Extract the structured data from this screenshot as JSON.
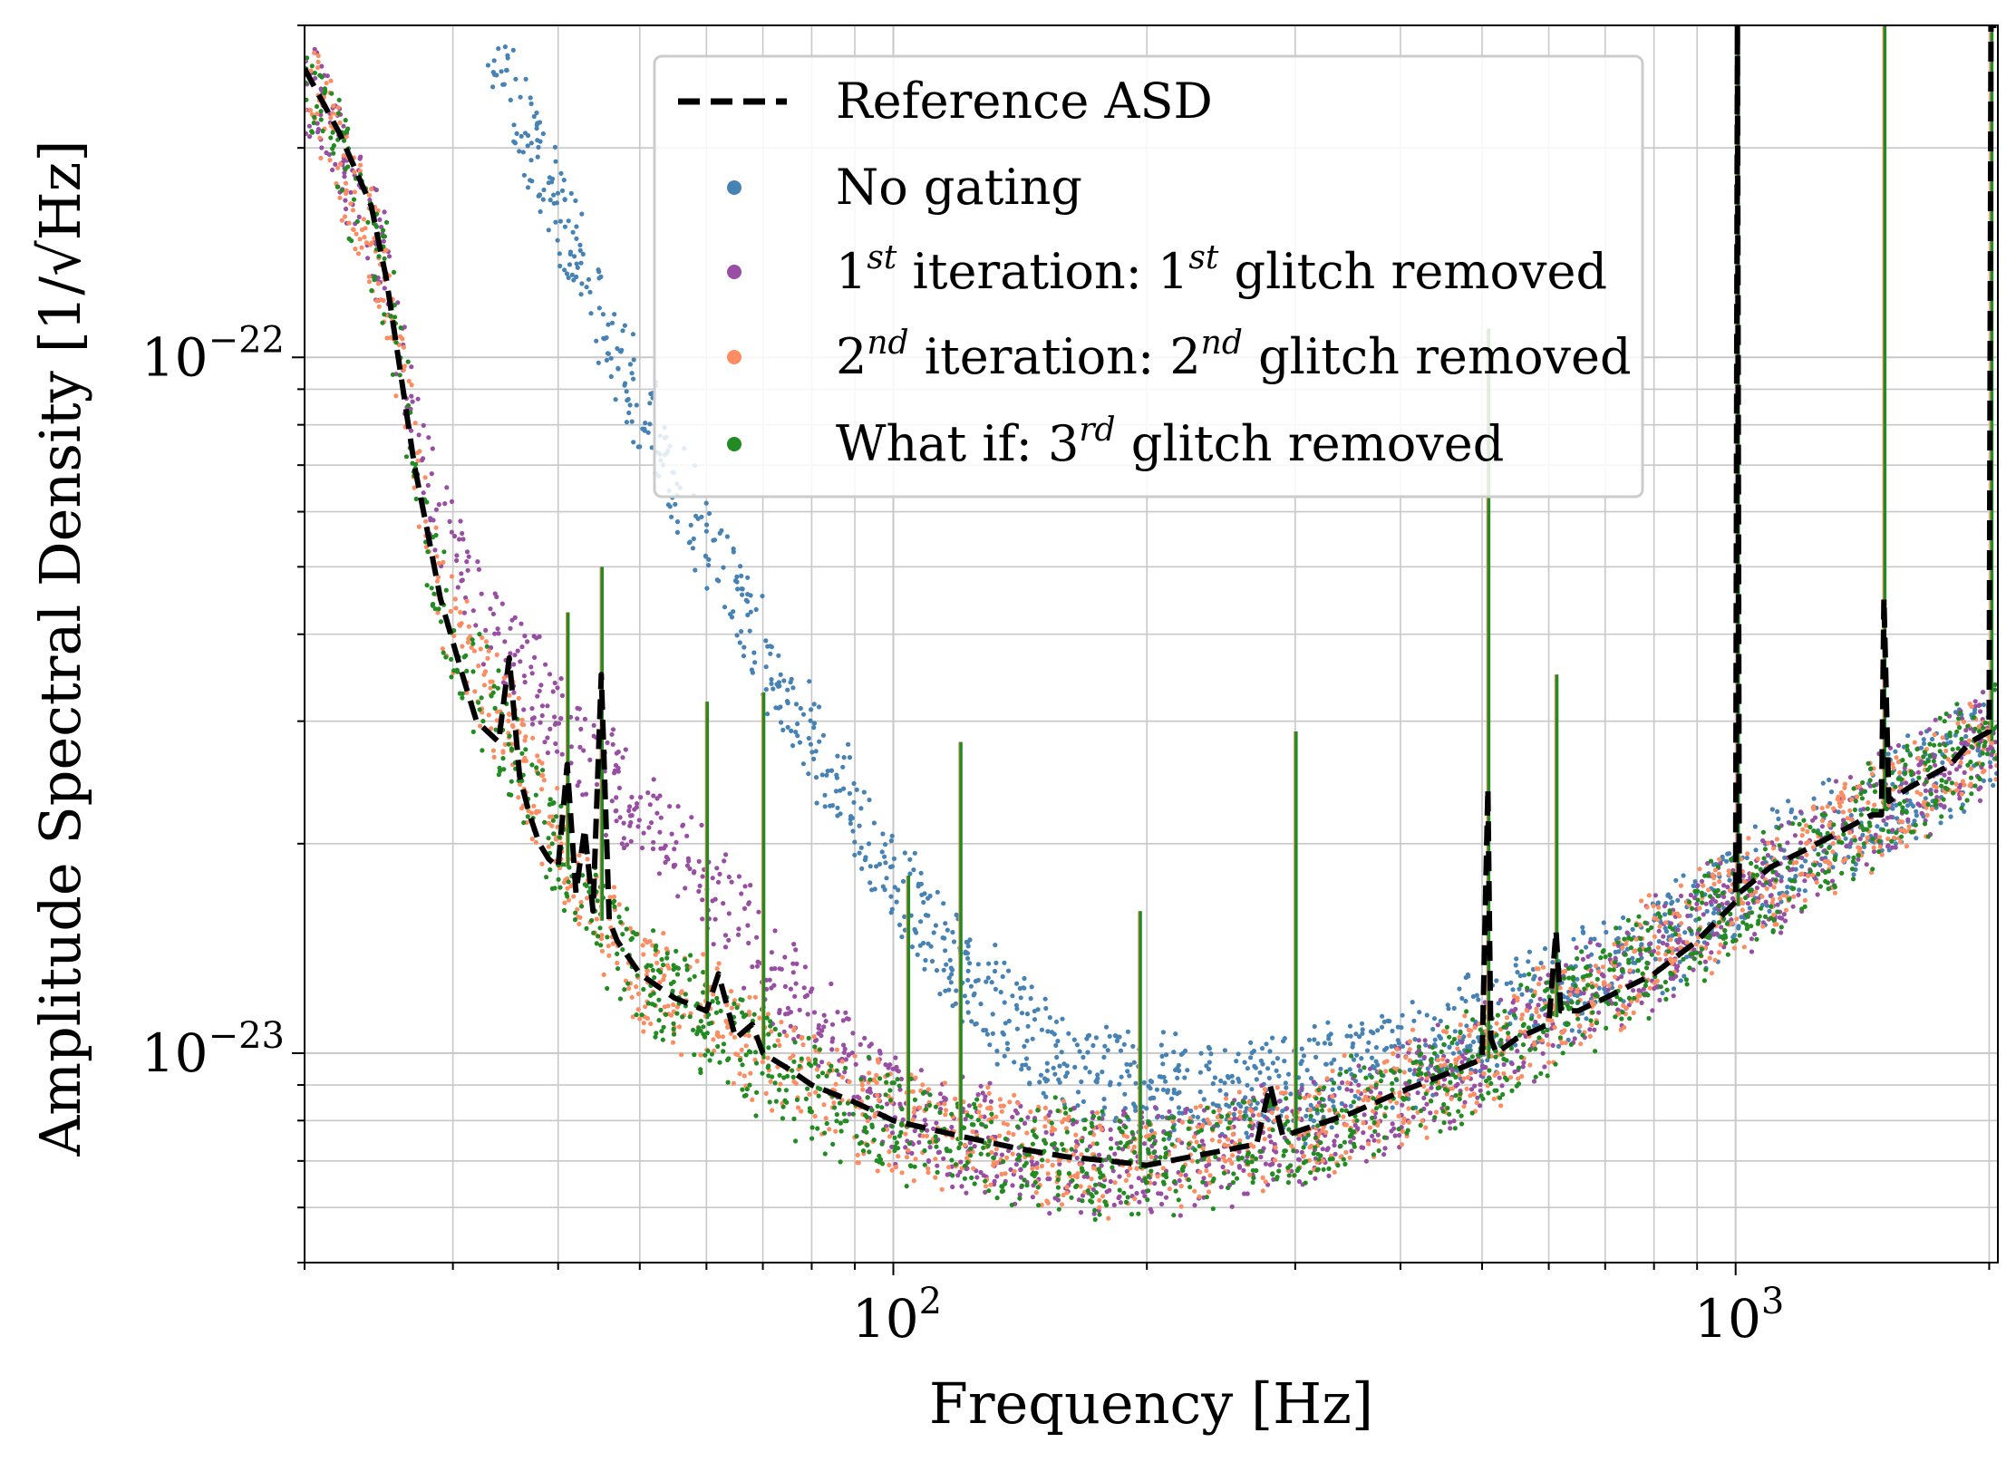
{
  "chart_data": {
    "type": "scatter",
    "title": "",
    "xlabel": "Frequency [Hz]",
    "ylabel": "Amplitude Spectral Density [1/√Hz]",
    "xscale": "log",
    "yscale": "log",
    "xlim": [
      20,
      2048
    ],
    "ylim": [
      5e-24,
      3e-22
    ],
    "grid": true,
    "grid_minor": true,
    "legend_position": "top-center",
    "x_ticks": [
      {
        "value": 100,
        "base": "10",
        "exp": "2"
      },
      {
        "value": 1000,
        "base": "10",
        "exp": "3"
      }
    ],
    "y_ticks": [
      {
        "value": 1e-22,
        "base": "10",
        "exp": "−22"
      },
      {
        "value": 1e-23,
        "base": "10",
        "exp": "−23"
      }
    ],
    "series": [
      {
        "key": "reference",
        "name": "Reference ASD",
        "kind": "dashed-line",
        "color": "#000000",
        "x": [
          20,
          22,
          24,
          25,
          26,
          27,
          28,
          29,
          30,
          31,
          32,
          34,
          35,
          36,
          37,
          38,
          39,
          40,
          41,
          42,
          43,
          44,
          45,
          46,
          47,
          50,
          55,
          60,
          62,
          65,
          68,
          70,
          75,
          80,
          90,
          100,
          120,
          140,
          160,
          180,
          200,
          240,
          270,
          280,
          290,
          300,
          350,
          400,
          450,
          500,
          508,
          512,
          520,
          550,
          600,
          612,
          620,
          650,
          700,
          800,
          900,
          1000,
          1005,
          1010,
          1100,
          1200,
          1300,
          1450,
          1490,
          1500,
          1520,
          1600,
          1800,
          1900,
          2000,
          2010,
          2040
        ],
        "y": [
          2.6e-22,
          2.1e-22,
          1.65e-22,
          1.3e-22,
          9.5e-23,
          7e-23,
          5.6e-23,
          4.5e-23,
          3.9e-23,
          3.4e-23,
          3e-23,
          2.8e-23,
          3.7e-23,
          2.5e-23,
          2.2e-23,
          2e-23,
          1.9e-23,
          1.85e-23,
          2.6e-23,
          1.7e-23,
          2.1e-23,
          1.6e-23,
          3.5e-23,
          1.55e-23,
          1.45e-23,
          1.3e-23,
          1.2e-23,
          1.15e-23,
          1.3e-23,
          1.05e-23,
          1.1e-23,
          1e-23,
          9.5e-24,
          9e-24,
          8.5e-24,
          8e-24,
          7.6e-24,
          7.3e-24,
          7.1e-24,
          7e-24,
          6.9e-24,
          7.2e-24,
          7.4e-24,
          9e-24,
          7.6e-24,
          7.7e-24,
          8.2e-24,
          8.8e-24,
          9.3e-24,
          9.8e-24,
          2.4e-23,
          1.05e-23,
          1e-23,
          1.05e-23,
          1.1e-23,
          1.5e-23,
          1.15e-23,
          1.15e-23,
          1.2e-23,
          1.3e-23,
          1.45e-23,
          1.65e-23,
          3e-22,
          1.7e-23,
          1.85e-23,
          1.95e-23,
          2.05e-23,
          2.2e-23,
          2.2e-23,
          4.5e-23,
          2.3e-23,
          2.4e-23,
          2.6e-23,
          2.8e-23,
          2.9e-23,
          3e-22,
          3e-22
        ]
      },
      {
        "key": "no_gating",
        "name": "No gating",
        "kind": "scatter-band",
        "color": "#4682b4",
        "x": [
          33,
          40,
          50,
          60,
          70,
          80,
          90,
          100,
          120,
          140,
          160,
          180,
          200,
          250,
          300,
          400,
          500,
          700,
          1000,
          1500,
          2048
        ],
        "y": [
          3e-22,
          1.6e-22,
          8.5e-23,
          5.5e-23,
          3.8e-23,
          2.8e-23,
          2.2e-23,
          1.8e-23,
          1.3e-23,
          1.1e-23,
          9.8e-24,
          9.3e-24,
          9e-24,
          8.8e-24,
          9e-24,
          1e-23,
          1.1e-23,
          1.3e-23,
          1.7e-23,
          2.3e-23,
          2.8e-23
        ]
      },
      {
        "key": "iter1",
        "name": "1st iteration: 1st glitch removed",
        "label_parts": {
          "n1": "1",
          "s1": "st",
          "mid": " iteration: ",
          "n2": "1",
          "s2": "st",
          "tail": " glitch removed"
        },
        "kind": "scatter-band",
        "color": "#984ea3",
        "x": [
          20,
          25,
          28,
          30,
          35,
          40,
          45,
          50,
          55,
          60,
          65,
          70,
          75,
          80,
          90,
          100,
          120,
          150,
          200,
          300,
          500,
          1000,
          2048
        ],
        "y": [
          2.6e-22,
          1.35e-22,
          6.5e-23,
          5.2e-23,
          3.8e-23,
          3e-23,
          2.55e-23,
          2.2e-23,
          1.95e-23,
          1.75e-23,
          1.55e-23,
          1.4e-23,
          1.25e-23,
          1.1e-23,
          9.5e-24,
          8.5e-24,
          7.7e-24,
          7.1e-24,
          7e-24,
          7.6e-24,
          9.8e-24,
          1.65e-23,
          2.9e-23
        ]
      },
      {
        "key": "iter2",
        "name": "2nd iteration: 2nd glitch removed",
        "label_parts": {
          "n1": "2",
          "s1": "nd",
          "mid": " iteration: ",
          "n2": "2",
          "s2": "nd",
          "tail": " glitch removed"
        },
        "kind": "scatter-band",
        "color": "#fc8d62",
        "x": [
          20,
          25,
          28,
          30,
          35,
          40,
          45,
          50,
          60,
          70,
          80,
          100,
          120,
          150,
          200,
          300,
          500,
          1000,
          2048
        ],
        "y": [
          2.6e-22,
          1.3e-22,
          5.6e-23,
          4e-23,
          2.9e-23,
          2e-23,
          1.6e-23,
          1.3e-23,
          1.15e-23,
          1e-23,
          9e-24,
          8e-24,
          7.6e-24,
          7.2e-24,
          7e-24,
          7.7e-24,
          9.8e-24,
          1.65e-23,
          2.9e-23
        ]
      },
      {
        "key": "whatif",
        "name": "What if: 3rd glitch removed",
        "label_parts": {
          "pre": "What if: ",
          "n1": "3",
          "s1": "rd",
          "tail": " glitch removed"
        },
        "kind": "scatter-band",
        "color": "#228b22",
        "x": [
          20,
          25,
          28,
          30,
          35,
          40,
          45,
          50,
          60,
          70,
          80,
          100,
          120,
          150,
          200,
          300,
          500,
          1000,
          2048
        ],
        "y": [
          2.6e-22,
          1.3e-22,
          5.5e-23,
          3.9e-23,
          2.8e-23,
          1.95e-23,
          1.55e-23,
          1.28e-23,
          1.12e-23,
          9.8e-24,
          8.8e-24,
          7.9e-24,
          7.5e-24,
          7.1e-24,
          6.9e-24,
          7.6e-24,
          9.7e-24,
          1.62e-23,
          2.85e-23
        ]
      }
    ],
    "line_peaks": [
      {
        "x": 41,
        "y": 4.3e-23
      },
      {
        "x": 45,
        "y": 5e-23
      },
      {
        "x": 60,
        "y": 3.2e-23
      },
      {
        "x": 70,
        "y": 3.3e-23
      },
      {
        "x": 104,
        "y": 1.8e-23
      },
      {
        "x": 120,
        "y": 2.8e-23
      },
      {
        "x": 196,
        "y": 1.6e-23
      },
      {
        "x": 300,
        "y": 2.9e-23
      },
      {
        "x": 508,
        "y": 1.1e-22
      },
      {
        "x": 612,
        "y": 3.5e-23
      },
      {
        "x": 1005,
        "y": 3e-22
      },
      {
        "x": 1500,
        "y": 3e-22
      },
      {
        "x": 2010,
        "y": 3e-22
      }
    ]
  }
}
